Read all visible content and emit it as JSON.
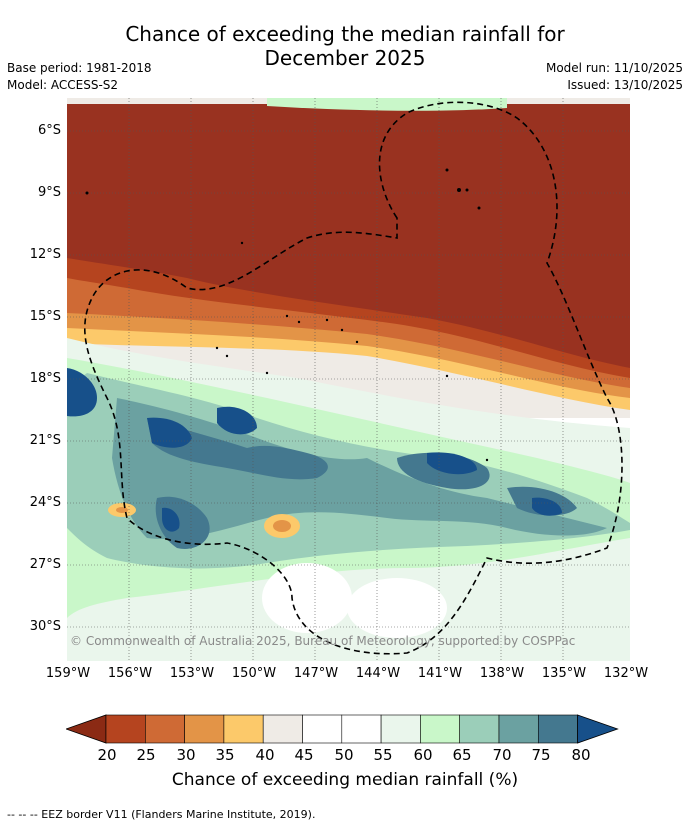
{
  "title_line1": "Chance of exceeding the median rainfall for",
  "title_line2": "December 2025",
  "base_period": "Base period: 1981-2018",
  "model": "Model: ACCESS-S2",
  "model_run": "Model run: 11/10/2025",
  "issued": "Issued: 13/10/2025",
  "lat_labels": [
    "6°S",
    "9°S",
    "12°S",
    "15°S",
    "18°S",
    "21°S",
    "24°S",
    "27°S",
    "30°S"
  ],
  "lon_labels": [
    "159°W",
    "156°W",
    "153°W",
    "150°W",
    "147°W",
    "144°W",
    "141°W",
    "138°W",
    "135°W",
    "132°W"
  ],
  "copyright": "© Commonwealth of Australia 2025, Bureau of Meteorology, supported by COSPPac",
  "colorbar": {
    "ticks": [
      "20",
      "25",
      "30",
      "35",
      "40",
      "45",
      "50",
      "55",
      "60",
      "65",
      "70",
      "75",
      "80"
    ],
    "label": "Chance of exceeding median rainfall (%)",
    "colors": [
      "#8b2a14",
      "#b5441f",
      "#cf6a35",
      "#e39447",
      "#fcc96a",
      "#efebe6",
      "#ffffff",
      "#ffffff",
      "#eaf6ec",
      "#c9f7c9",
      "#9bceb9",
      "#6ba1a1",
      "#44788f",
      "#17508a"
    ]
  },
  "footnote": "--  --  -- EEZ border V11 (Flanders Marine Institute, 2019)."
}
